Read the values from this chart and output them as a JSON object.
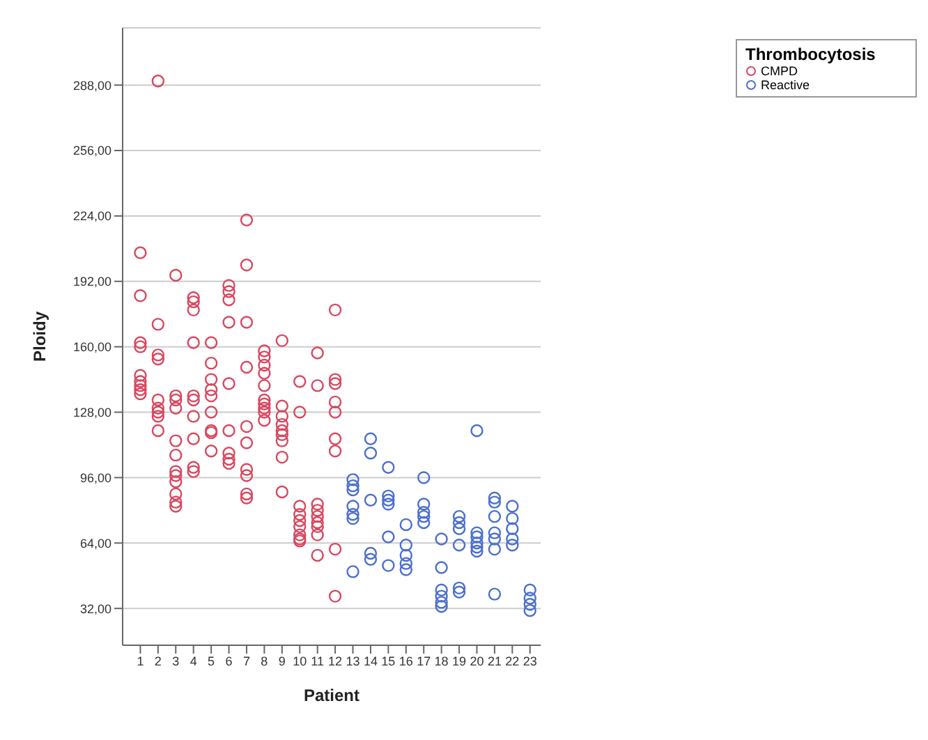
{
  "chart_data": {
    "type": "scatter",
    "xlabel": "Patient",
    "ylabel": "Ploidy",
    "legend_title": "Thrombocytosis",
    "legend": "top right",
    "grid": "y",
    "marker": "circle",
    "xlim": [
      0,
      23.6
    ],
    "xticks": [
      1,
      2,
      3,
      4,
      5,
      6,
      7,
      8,
      9,
      10,
      11,
      12,
      13,
      14,
      15,
      16,
      17,
      18,
      19,
      20,
      21,
      22,
      23
    ],
    "ylim": [
      14,
      316
    ],
    "yticks": [
      {
        "value": 32,
        "label": "32,00"
      },
      {
        "value": 64,
        "label": "64,00"
      },
      {
        "value": 96,
        "label": "96,00"
      },
      {
        "value": 128,
        "label": "128,00"
      },
      {
        "value": 160,
        "label": "160,00"
      },
      {
        "value": 192,
        "label": "192,00"
      },
      {
        "value": 224,
        "label": "224,00"
      },
      {
        "value": 256,
        "label": "256,00"
      },
      {
        "value": 288,
        "label": "288,00"
      }
    ],
    "series": [
      {
        "name": "CMPD",
        "color": "#d9475f",
        "x": [
          1,
          1,
          1,
          1,
          1,
          1,
          1,
          1,
          1,
          2,
          2,
          2,
          2,
          2,
          2,
          2,
          2,
          2,
          3,
          3,
          3,
          3,
          3,
          3,
          3,
          3,
          3,
          3,
          3,
          3,
          4,
          4,
          4,
          4,
          4,
          4,
          4,
          4,
          4,
          4,
          5,
          5,
          5,
          5,
          5,
          5,
          5,
          5,
          5,
          6,
          6,
          6,
          6,
          6,
          6,
          6,
          6,
          6,
          7,
          7,
          7,
          7,
          7,
          7,
          7,
          7,
          7,
          7,
          8,
          8,
          8,
          8,
          8,
          8,
          8,
          8,
          8,
          8,
          9,
          9,
          9,
          9,
          9,
          9,
          9,
          9,
          9,
          10,
          10,
          10,
          10,
          10,
          10,
          10,
          10,
          10,
          11,
          11,
          11,
          11,
          11,
          11,
          11,
          11,
          11,
          12,
          12,
          12,
          12,
          12,
          12,
          12,
          12,
          12
        ],
        "values": [
          206,
          185,
          162,
          160,
          146,
          143,
          141,
          139,
          137,
          290,
          171,
          156,
          154,
          134,
          130,
          128,
          126,
          119,
          195,
          136,
          134,
          130,
          114,
          107,
          99,
          97,
          94,
          88,
          84,
          82,
          184,
          182,
          178,
          162,
          136,
          134,
          126,
          115,
          101,
          99,
          162,
          152,
          144,
          139,
          136,
          128,
          119,
          118,
          109,
          190,
          187,
          183,
          172,
          142,
          119,
          108,
          105,
          103,
          222,
          200,
          172,
          150,
          121,
          113,
          100,
          97,
          88,
          86,
          158,
          155,
          151,
          147,
          141,
          134,
          132,
          130,
          128,
          124,
          163,
          131,
          126,
          122,
          119,
          117,
          114,
          106,
          89,
          143,
          128,
          82,
          78,
          75,
          72,
          68,
          66,
          65,
          157,
          141,
          83,
          80,
          77,
          74,
          72,
          68,
          58,
          178,
          144,
          142,
          133,
          128,
          115,
          109,
          61,
          38
        ]
      },
      {
        "name": "Reactive",
        "color": "#4a6fcf",
        "x": [
          13,
          13,
          13,
          13,
          13,
          13,
          13,
          14,
          14,
          14,
          14,
          14,
          15,
          15,
          15,
          15,
          15,
          15,
          16,
          16,
          16,
          16,
          16,
          17,
          17,
          17,
          17,
          17,
          18,
          18,
          18,
          18,
          18,
          18,
          19,
          19,
          19,
          19,
          19,
          19,
          20,
          20,
          20,
          20,
          20,
          20,
          21,
          21,
          21,
          21,
          21,
          21,
          21,
          22,
          22,
          22,
          22,
          22,
          23,
          23,
          23,
          23
        ],
        "values": [
          95,
          92,
          90,
          82,
          78,
          76,
          50,
          115,
          108,
          85,
          59,
          56,
          101,
          87,
          85,
          83,
          67,
          53,
          73,
          63,
          58,
          54,
          51,
          96,
          83,
          79,
          77,
          74,
          66,
          52,
          41,
          38,
          35,
          33,
          77,
          74,
          71,
          63,
          42,
          40,
          119,
          69,
          67,
          64,
          62,
          60,
          86,
          84,
          77,
          69,
          66,
          61,
          39,
          82,
          76,
          71,
          66,
          63,
          41,
          37,
          34,
          31
        ]
      }
    ]
  }
}
